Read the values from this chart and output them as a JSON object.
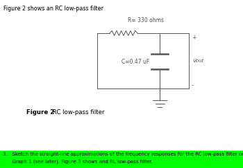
{
  "title_text": "Figure 2 shows an RC low-pass filter",
  "fig2_bold": "Figure 2",
  "fig2_normal": " RC low-pass filter",
  "R_label": "R= 330 ohms",
  "C_label": "C=0.47 uF",
  "Vout_label": "Vout",
  "plus_label": "+",
  "minus_label": "-",
  "question_line1": "3.   Sketch the straight-line approximations of the frequency responses for the RC low-pass filter on",
  "question_line2": "      Graph 1 (see later). Figure 3 shows and RL low-pass filter.",
  "highlight_color": "#00FF00",
  "bg_color": "#FFFFFF",
  "text_color": "#000000",
  "circuit_color": "#555555"
}
